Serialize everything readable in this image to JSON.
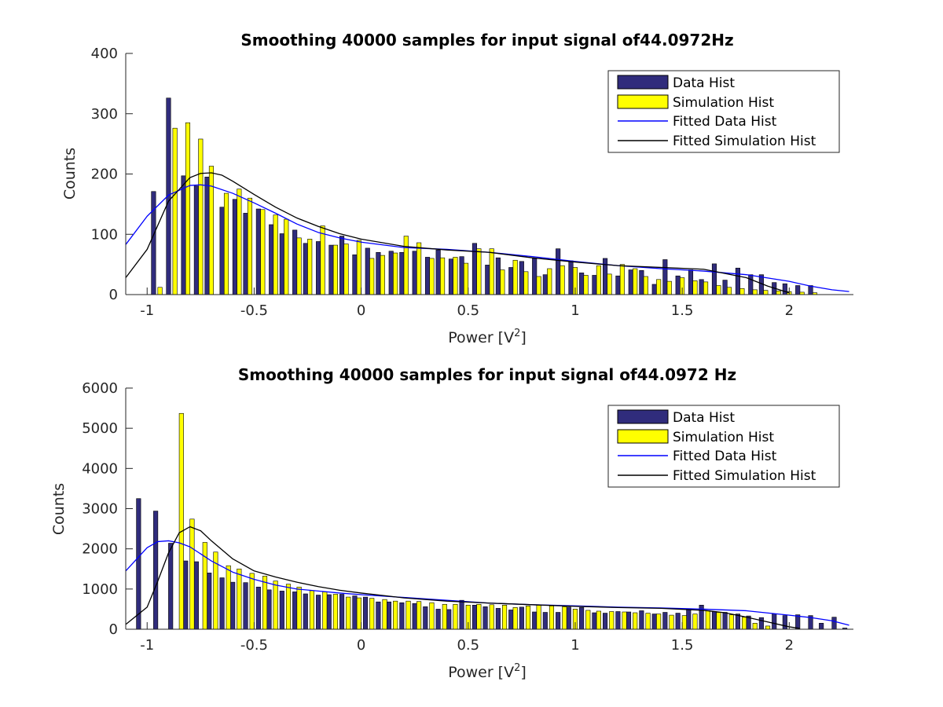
{
  "chart_data": [
    {
      "type": "bar",
      "title": "Smoothing 40000 samples for input signal of44.0972Hz",
      "xlabel": "Power [V",
      "xlabel_sup": "2",
      "xlabel_tail": "]",
      "ylabel": "Counts",
      "xlim": [
        -1.1,
        2.3
      ],
      "ylim": [
        0,
        400
      ],
      "xticks": [
        -1,
        -0.5,
        0,
        0.5,
        1,
        1.5,
        2
      ],
      "xtick_labels": [
        "-1",
        "-0.5",
        "0",
        "0.5",
        "1",
        "1.5",
        "2"
      ],
      "yticks": [
        0,
        100,
        200,
        300,
        400
      ],
      "ytick_labels": [
        "0",
        "100",
        "200",
        "300",
        "400"
      ],
      "grid": false,
      "legend_position": "top-right",
      "series": [
        {
          "name": "Data Hist",
          "kind": "bar",
          "color": "#302c7c",
          "x": [
            -0.97,
            -0.9,
            -0.83,
            -0.77,
            -0.72,
            -0.65,
            -0.59,
            -0.54,
            -0.48,
            -0.42,
            -0.37,
            -0.31,
            -0.26,
            -0.2,
            -0.14,
            -0.09,
            -0.03,
            0.03,
            0.08,
            0.14,
            0.19,
            0.25,
            0.31,
            0.36,
            0.42,
            0.47,
            0.53,
            0.59,
            0.64,
            0.7,
            0.75,
            0.81,
            0.86,
            0.92,
            0.98,
            1.03,
            1.09,
            1.14,
            1.2,
            1.26,
            1.31,
            1.37,
            1.42,
            1.48,
            1.54,
            1.59,
            1.65,
            1.7,
            1.76,
            1.82,
            1.87,
            1.93,
            1.98,
            2.04,
            2.1
          ],
          "values": [
            171,
            326,
            197,
            180,
            195,
            145,
            158,
            135,
            142,
            116,
            101,
            107,
            85,
            88,
            82,
            97,
            66,
            77,
            70,
            72,
            70,
            72,
            62,
            74,
            59,
            63,
            85,
            49,
            61,
            45,
            55,
            60,
            33,
            76,
            56,
            36,
            32,
            60,
            31,
            41,
            40,
            17,
            58,
            31,
            41,
            25,
            51,
            24,
            44,
            33,
            33,
            20,
            18,
            15,
            15
          ]
        },
        {
          "name": "Simulation Hist",
          "kind": "bar",
          "color": "#ffff00",
          "x": [
            -0.94,
            -0.87,
            -0.81,
            -0.75,
            -0.7,
            -0.63,
            -0.57,
            -0.52,
            -0.46,
            -0.4,
            -0.35,
            -0.29,
            -0.24,
            -0.18,
            -0.12,
            -0.07,
            -0.01,
            0.05,
            0.1,
            0.16,
            0.21,
            0.27,
            0.33,
            0.38,
            0.44,
            0.49,
            0.55,
            0.61,
            0.66,
            0.72,
            0.77,
            0.83,
            0.88,
            0.94,
            1.0,
            1.05,
            1.11,
            1.16,
            1.22,
            1.28,
            1.33,
            1.39,
            1.44,
            1.5,
            1.56,
            1.61,
            1.67,
            1.72,
            1.78,
            1.84,
            1.89,
            1.95,
            2.0,
            2.06,
            2.12
          ],
          "values": [
            12,
            276,
            285,
            258,
            213,
            168,
            175,
            160,
            141,
            132,
            125,
            94,
            92,
            114,
            82,
            84,
            90,
            60,
            65,
            69,
            97,
            86,
            60,
            61,
            62,
            52,
            76,
            76,
            41,
            57,
            38,
            30,
            43,
            48,
            45,
            32,
            48,
            34,
            50,
            43,
            30,
            25,
            22,
            28,
            23,
            21,
            15,
            12,
            10,
            8,
            7,
            6,
            5,
            4,
            3
          ]
        },
        {
          "name": "Fitted Data Hist",
          "kind": "line",
          "color": "#0000ff",
          "x": [
            -1.1,
            -1.0,
            -0.9,
            -0.8,
            -0.75,
            -0.7,
            -0.6,
            -0.5,
            -0.4,
            -0.3,
            -0.2,
            -0.1,
            0,
            0.2,
            0.4,
            0.6,
            0.8,
            1.0,
            1.2,
            1.4,
            1.6,
            1.8,
            2.0,
            2.1,
            2.2,
            2.28
          ],
          "values": [
            83,
            130,
            165,
            181,
            182,
            180,
            168,
            152,
            135,
            117,
            103,
            94,
            87,
            78,
            75,
            70,
            63,
            55,
            48,
            43,
            39,
            33,
            22,
            14,
            8,
            5
          ]
        },
        {
          "name": "Fitted Simulation Hist",
          "kind": "line",
          "color": "#000000",
          "x": [
            -1.1,
            -1.0,
            -0.9,
            -0.8,
            -0.75,
            -0.7,
            -0.65,
            -0.6,
            -0.5,
            -0.4,
            -0.3,
            -0.2,
            -0.1,
            0,
            0.2,
            0.4,
            0.6,
            0.8,
            1.0,
            1.2,
            1.4,
            1.6,
            1.8,
            1.9,
            2.0
          ],
          "values": [
            28,
            75,
            155,
            194,
            201,
            202,
            198,
            188,
            166,
            145,
            127,
            113,
            101,
            92,
            80,
            74,
            70,
            61,
            54,
            48,
            45,
            42,
            28,
            14,
            3
          ]
        }
      ]
    },
    {
      "type": "bar",
      "title": "Smoothing 40000 samples for input signal of44.0972 Hz",
      "xlabel": "Power [V",
      "xlabel_sup": "2",
      "xlabel_tail": "]",
      "ylabel": "Counts",
      "xlim": [
        -1.1,
        2.3
      ],
      "ylim": [
        0,
        6000
      ],
      "xticks": [
        -1,
        -0.5,
        0,
        0.5,
        1,
        1.5,
        2
      ],
      "xtick_labels": [
        "-1",
        "-0.5",
        "0",
        "0.5",
        "1",
        "1.5",
        "2"
      ],
      "yticks": [
        0,
        1000,
        2000,
        3000,
        4000,
        5000,
        6000
      ],
      "ytick_labels": [
        "0",
        "1000",
        "2000",
        "3000",
        "4000",
        "5000",
        "6000"
      ],
      "grid": false,
      "legend_position": "top-right",
      "series": [
        {
          "name": "Data Hist",
          "kind": "bar",
          "color": "#302c7c",
          "x": [
            -1.04,
            -0.96,
            -0.89,
            -0.82,
            -0.77,
            -0.71,
            -0.65,
            -0.6,
            -0.54,
            -0.48,
            -0.43,
            -0.37,
            -0.31,
            -0.26,
            -0.2,
            -0.15,
            -0.09,
            -0.03,
            0.02,
            0.08,
            0.13,
            0.19,
            0.25,
            0.3,
            0.36,
            0.41,
            0.47,
            0.53,
            0.58,
            0.64,
            0.7,
            0.75,
            0.81,
            0.86,
            0.92,
            0.97,
            1.03,
            1.09,
            1.14,
            1.2,
            1.25,
            1.31,
            1.37,
            1.42,
            1.48,
            1.53,
            1.59,
            1.65,
            1.7,
            1.76,
            1.81,
            1.87,
            1.93,
            1.98,
            2.04,
            2.1,
            2.15,
            2.21,
            2.26
          ],
          "values": [
            3250,
            2940,
            2140,
            1700,
            1680,
            1400,
            1280,
            1170,
            1160,
            1050,
            980,
            950,
            930,
            880,
            850,
            860,
            870,
            830,
            800,
            680,
            680,
            660,
            640,
            560,
            500,
            490,
            720,
            600,
            560,
            520,
            480,
            550,
            430,
            420,
            420,
            550,
            540,
            410,
            400,
            440,
            430,
            460,
            380,
            420,
            400,
            500,
            600,
            440,
            420,
            380,
            330,
            290,
            380,
            340,
            360,
            340,
            150,
            300,
            30
          ]
        },
        {
          "name": "Simulation Hist",
          "kind": "bar",
          "color": "#ffff00",
          "x": [
            -0.84,
            -0.79,
            -0.73,
            -0.68,
            -0.62,
            -0.57,
            -0.51,
            -0.45,
            -0.4,
            -0.34,
            -0.29,
            -0.23,
            -0.17,
            -0.12,
            -0.06,
            -0.01,
            0.05,
            0.11,
            0.16,
            0.22,
            0.27,
            0.33,
            0.39,
            0.44,
            0.5,
            0.55,
            0.61,
            0.67,
            0.72,
            0.78,
            0.83,
            0.89,
            0.95,
            1.0,
            1.06,
            1.11,
            1.17,
            1.23,
            1.28,
            1.34,
            1.39,
            1.45,
            1.51,
            1.56,
            1.62,
            1.67,
            1.73,
            1.79,
            1.84,
            1.9
          ],
          "values": [
            5370,
            2740,
            2160,
            1920,
            1580,
            1500,
            1390,
            1320,
            1200,
            1120,
            1050,
            960,
            930,
            870,
            800,
            780,
            770,
            740,
            700,
            700,
            690,
            660,
            620,
            620,
            600,
            620,
            610,
            600,
            540,
            580,
            600,
            580,
            560,
            500,
            470,
            450,
            440,
            430,
            410,
            400,
            380,
            350,
            340,
            380,
            460,
            420,
            360,
            300,
            150,
            80
          ]
        },
        {
          "name": "Fitted Data Hist",
          "kind": "line",
          "color": "#0000ff",
          "x": [
            -1.1,
            -1.0,
            -0.95,
            -0.9,
            -0.85,
            -0.8,
            -0.7,
            -0.6,
            -0.5,
            -0.4,
            -0.3,
            -0.2,
            -0.1,
            0,
            0.2,
            0.4,
            0.6,
            0.8,
            1.0,
            1.2,
            1.4,
            1.6,
            1.8,
            2.0,
            2.1,
            2.2,
            2.28
          ],
          "values": [
            1450,
            2030,
            2180,
            2200,
            2150,
            2050,
            1700,
            1420,
            1240,
            1100,
            1000,
            950,
            900,
            860,
            790,
            720,
            650,
            610,
            580,
            550,
            530,
            500,
            460,
            350,
            290,
            210,
            100
          ]
        },
        {
          "name": "Fitted Simulation Hist",
          "kind": "line",
          "color": "#000000",
          "x": [
            -1.1,
            -1.0,
            -0.95,
            -0.9,
            -0.85,
            -0.8,
            -0.75,
            -0.7,
            -0.6,
            -0.5,
            -0.4,
            -0.3,
            -0.2,
            -0.1,
            0,
            0.2,
            0.4,
            0.6,
            0.8,
            1.0,
            1.2,
            1.4,
            1.6,
            1.7,
            1.8,
            1.9,
            2.0,
            2.05
          ],
          "values": [
            120,
            550,
            1200,
            1900,
            2400,
            2550,
            2450,
            2200,
            1750,
            1450,
            1300,
            1170,
            1060,
            970,
            900,
            780,
            700,
            650,
            610,
            570,
            540,
            520,
            470,
            410,
            300,
            180,
            60,
            20
          ]
        }
      ]
    }
  ]
}
